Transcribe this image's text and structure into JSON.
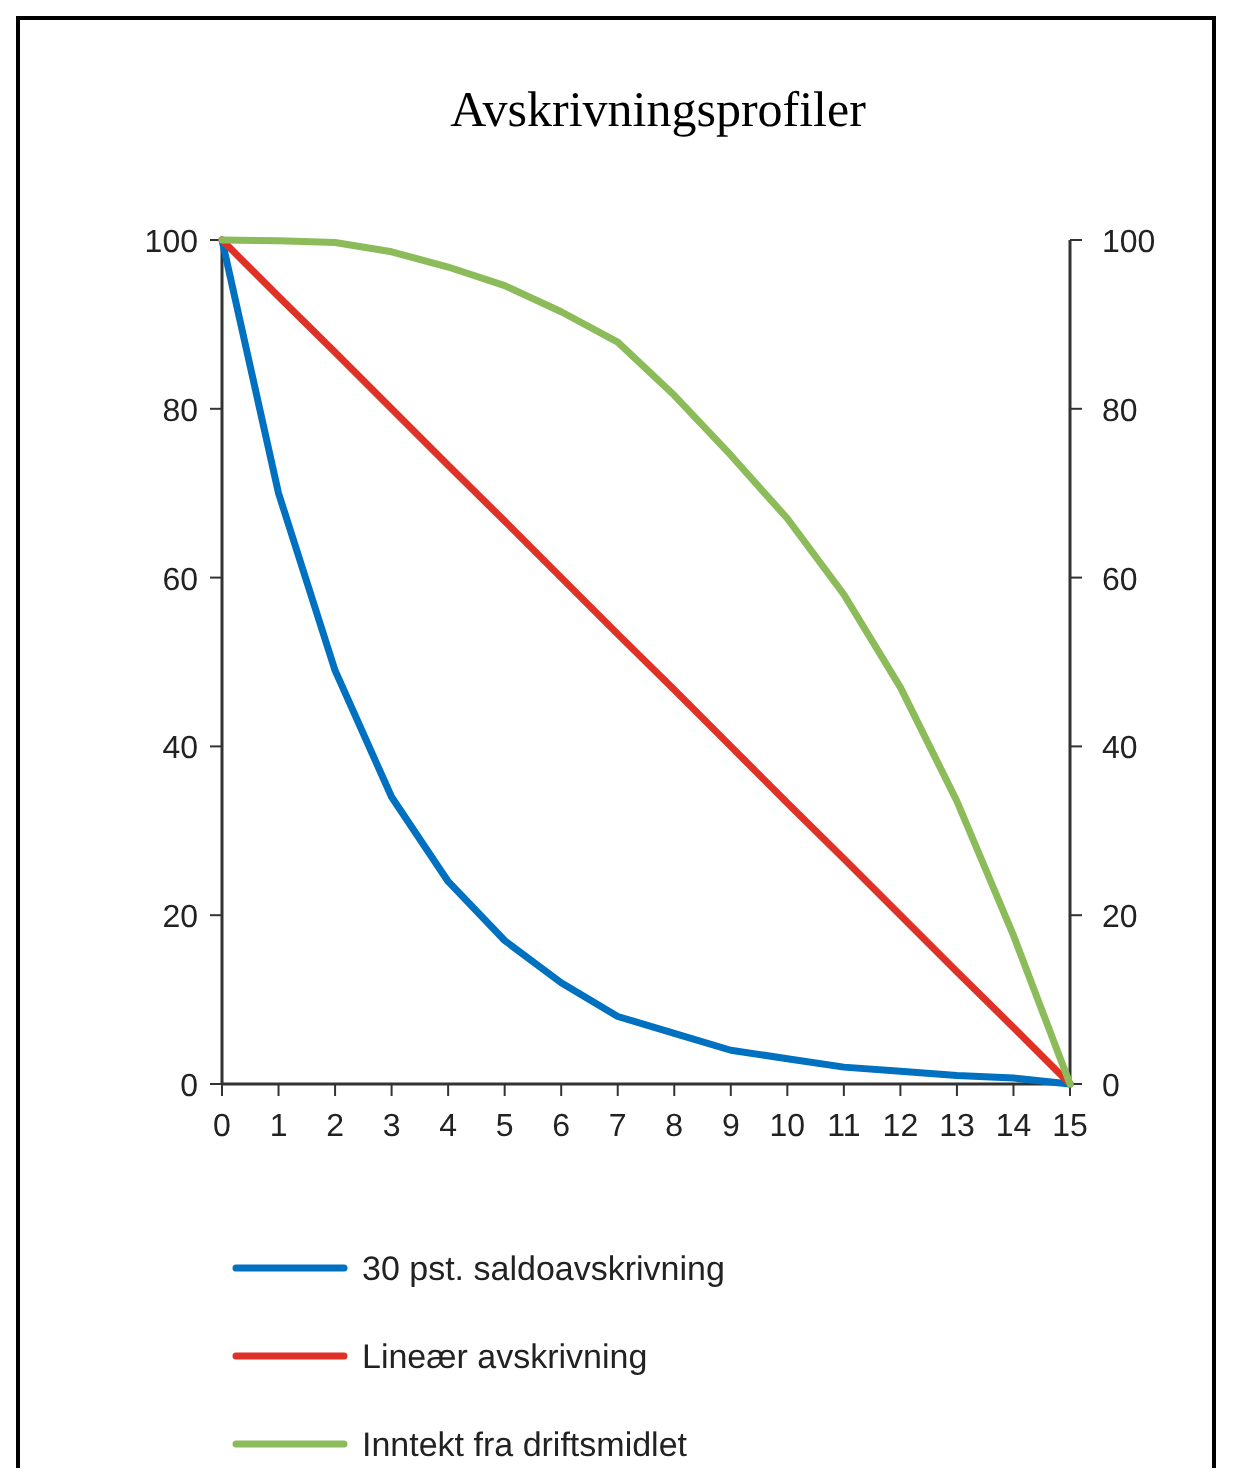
{
  "chart_data": {
    "type": "line",
    "title": "Avskrivningsprofiler",
    "x": [
      0,
      1,
      2,
      3,
      4,
      5,
      6,
      7,
      8,
      9,
      10,
      11,
      12,
      13,
      14,
      15
    ],
    "series": [
      {
        "name": "30 pst. saldoavskrivning",
        "color": "#0070c0",
        "values": [
          100,
          70,
          49,
          34,
          24,
          17,
          12,
          8,
          6,
          4,
          3,
          2,
          1.5,
          1,
          0.7,
          0
        ]
      },
      {
        "name": "Lineær avskrivning",
        "color": "#e03127",
        "values": [
          100,
          93.3,
          86.7,
          80,
          73.3,
          66.7,
          60,
          53.3,
          46.7,
          40,
          33.3,
          26.7,
          20,
          13.3,
          6.7,
          0
        ]
      },
      {
        "name": "Inntekt fra driftsmidlet",
        "color": "#8cbb5a",
        "values": [
          100,
          99.9,
          99.7,
          98.6,
          96.8,
          94.6,
          91.5,
          87.9,
          81.6,
          74.5,
          67,
          58,
          47,
          33.5,
          17.6,
          0
        ]
      }
    ],
    "xlim": [
      0,
      15
    ],
    "xticks": [
      0,
      1,
      2,
      3,
      4,
      5,
      6,
      7,
      8,
      9,
      10,
      11,
      12,
      13,
      14,
      15
    ],
    "ylim": [
      0,
      100
    ],
    "yticks": [
      0,
      20,
      40,
      60,
      80,
      100
    ],
    "y2lim": [
      0,
      100
    ],
    "y2ticks": [
      0,
      20,
      40,
      60,
      80,
      100
    ],
    "grid": false,
    "legend": "bottom",
    "marker": "none",
    "line_style": "solid"
  }
}
